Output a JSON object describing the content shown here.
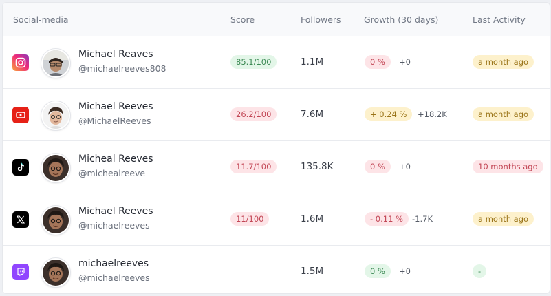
{
  "header": {
    "social_media": "Social-media",
    "score": "Score",
    "followers": "Followers",
    "growth": "Growth (30 days)",
    "last_activity": "Last Activity"
  },
  "rows": [
    {
      "platform": "instagram-icon",
      "name": "Michael Reaves",
      "handle": "@michaelreeves808",
      "score": "85.1/100",
      "score_tone": "green",
      "followers": "1.1M",
      "growth": "0 %",
      "growth_tone": "red",
      "delta": "+0",
      "last_activity": "a month ago",
      "activity_tone": "yellow"
    },
    {
      "platform": "youtube-icon",
      "name": "Michael Reeves",
      "handle": "@MichaelReeves",
      "score": "26.2/100",
      "score_tone": "red",
      "followers": "7.6M",
      "growth": "+ 0.24 %",
      "growth_tone": "yellow",
      "delta": "+18.2K",
      "last_activity": "a month ago",
      "activity_tone": "yellow"
    },
    {
      "platform": "tiktok-icon",
      "name": "Micheal Reeves",
      "handle": "@michealreeve",
      "score": "11.7/100",
      "score_tone": "red",
      "followers": "135.8K",
      "growth": "0 %",
      "growth_tone": "red",
      "delta": "+0",
      "last_activity": "10 months ago",
      "activity_tone": "red"
    },
    {
      "platform": "x-icon",
      "name": "Michael Reeves",
      "handle": "@michaelreeves",
      "score": "11/100",
      "score_tone": "red",
      "followers": "1.6M",
      "growth": "- 0.11 %",
      "growth_tone": "red",
      "delta": "-1.7K",
      "last_activity": "a month ago",
      "activity_tone": "yellow"
    },
    {
      "platform": "twitch-icon",
      "name": "michaelreeves",
      "handle": "@michaelreeves",
      "score": "–",
      "score_tone": "none",
      "followers": "1.5M",
      "growth": "0 %",
      "growth_tone": "green",
      "delta": "+0",
      "last_activity": "-",
      "activity_tone": "green"
    }
  ],
  "colors": {
    "instagram": "#d62f7a",
    "youtube": "#e62117",
    "tiktok": "#000000",
    "x": "#000000",
    "twitch": "#9146ff",
    "pill_green_bg": "#e3f6e8",
    "pill_red_bg": "#fde4e7",
    "pill_yellow_bg": "#fdf1cc"
  }
}
